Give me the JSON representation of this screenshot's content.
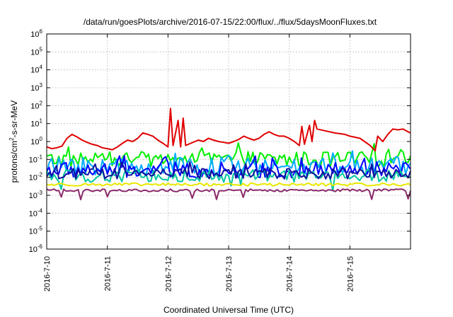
{
  "chart_data": {
    "type": "line",
    "title": "/data/run/goesPlots/archive/2016-07-15/22:00/flux/../flux/5daysMoonFluxes.txt",
    "xlabel": "Coordinated Universal Time (UTC)",
    "ylabel": {
      "prefix": "protons/cm",
      "sup": "2",
      "suffix": "-s-sr-MeV"
    },
    "yscale": "log",
    "ylim": [
      1e-06,
      1000000.0
    ],
    "yticks": [
      {
        "value": 1e-06,
        "base": "10",
        "exp": "-6"
      },
      {
        "value": 1e-05,
        "base": "10",
        "exp": "-5"
      },
      {
        "value": 0.0001,
        "base": "10",
        "exp": "-4"
      },
      {
        "value": 0.001,
        "base": "10",
        "exp": "-3"
      },
      {
        "value": 0.01,
        "base": "10",
        "exp": "-2"
      },
      {
        "value": 0.1,
        "base": "10",
        "exp": "-1"
      },
      {
        "value": 1,
        "base": "10",
        "exp": "0"
      },
      {
        "value": 10,
        "base": "10",
        "exp": "1"
      },
      {
        "value": 100,
        "base": "10",
        "exp": "2"
      },
      {
        "value": 1000,
        "base": "10",
        "exp": "3"
      },
      {
        "value": 10000,
        "base": "10",
        "exp": "4"
      },
      {
        "value": 100000,
        "base": "10",
        "exp": "5"
      },
      {
        "value": 1000000,
        "base": "10",
        "exp": "6"
      }
    ],
    "xlim": [
      "2016-07-10 00:00",
      "2016-07-16 00:00"
    ],
    "xticks": [
      {
        "value": "2016-07-10 00:00",
        "label": "2016-7-10"
      },
      {
        "value": "2016-07-11 00:00",
        "label": "2016-7-11"
      },
      {
        "value": "2016-07-12 00:00",
        "label": "2016-7-12"
      },
      {
        "value": "2016-07-13 00:00",
        "label": "2016-7-13"
      },
      {
        "value": "2016-07-14 00:00",
        "label": "2016-7-14"
      },
      {
        "value": "2016-07-15 00:00",
        "label": "2016-7-15"
      }
    ],
    "grid": true,
    "legend": "none",
    "series": [
      {
        "color": "#e00000",
        "points": [
          [
            "2016-07-10 00:00",
            0.5
          ],
          [
            "2016-07-10 02:00",
            0.4
          ],
          [
            "2016-07-10 04:00",
            0.45
          ],
          [
            "2016-07-10 06:00",
            0.55
          ],
          [
            "2016-07-10 08:00",
            1.5
          ],
          [
            "2016-07-10 10:00",
            2.5
          ],
          [
            "2016-07-10 12:00",
            1.8
          ],
          [
            "2016-07-10 14:00",
            1.2
          ],
          [
            "2016-07-10 16:00",
            0.9
          ],
          [
            "2016-07-10 18:00",
            0.7
          ],
          [
            "2016-07-10 20:00",
            0.6
          ],
          [
            "2016-07-10 22:00",
            0.45
          ],
          [
            "2016-07-11 00:00",
            0.4
          ],
          [
            "2016-07-11 02:00",
            0.35
          ],
          [
            "2016-07-11 04:00",
            0.5
          ],
          [
            "2016-07-11 06:00",
            0.8
          ],
          [
            "2016-07-11 08:00",
            1.2
          ],
          [
            "2016-07-11 10:00",
            1.0
          ],
          [
            "2016-07-11 12:00",
            1.5
          ],
          [
            "2016-07-11 14:00",
            3.0
          ],
          [
            "2016-07-11 16:00",
            2.5
          ],
          [
            "2016-07-11 18:00",
            2.0
          ],
          [
            "2016-07-11 20:00",
            1.2
          ],
          [
            "2016-07-11 22:00",
            0.8
          ],
          [
            "2016-07-12 00:00",
            0.5
          ],
          [
            "2016-07-12 01:00",
            70
          ],
          [
            "2016-07-12 02:00",
            0.6
          ],
          [
            "2016-07-12 04:00",
            15
          ],
          [
            "2016-07-12 05:00",
            0.5
          ],
          [
            "2016-07-12 06:00",
            20
          ],
          [
            "2016-07-12 07:00",
            0.6
          ],
          [
            "2016-07-12 09:00",
            0.8
          ],
          [
            "2016-07-12 12:00",
            1.2
          ],
          [
            "2016-07-12 14:00",
            1.0
          ],
          [
            "2016-07-12 16:00",
            1.5
          ],
          [
            "2016-07-12 18:00",
            1.2
          ],
          [
            "2016-07-12 20:00",
            1.0
          ],
          [
            "2016-07-12 22:00",
            0.9
          ],
          [
            "2016-07-13 00:00",
            0.8
          ],
          [
            "2016-07-13 02:00",
            1.0
          ],
          [
            "2016-07-13 04:00",
            1.3
          ],
          [
            "2016-07-13 06:00",
            2.0
          ],
          [
            "2016-07-13 08:00",
            1.5
          ],
          [
            "2016-07-13 10:00",
            1.2
          ],
          [
            "2016-07-13 12:00",
            1.5
          ],
          [
            "2016-07-13 14:00",
            2.5
          ],
          [
            "2016-07-13 16:00",
            3.5
          ],
          [
            "2016-07-13 18:00",
            2.5
          ],
          [
            "2016-07-13 20:00",
            2.0
          ],
          [
            "2016-07-13 22:00",
            2.0
          ],
          [
            "2016-07-14 00:00",
            1.5
          ],
          [
            "2016-07-14 02:00",
            1.0
          ],
          [
            "2016-07-14 04:00",
            0.6
          ],
          [
            "2016-07-14 05:00",
            7
          ],
          [
            "2016-07-14 06:00",
            0.7
          ],
          [
            "2016-07-14 08:00",
            8
          ],
          [
            "2016-07-14 09:00",
            1.0
          ],
          [
            "2016-07-14 10:00",
            15
          ],
          [
            "2016-07-14 11:00",
            5
          ],
          [
            "2016-07-14 14:00",
            4
          ],
          [
            "2016-07-14 18:00",
            3
          ],
          [
            "2016-07-14 22:00",
            2.5
          ],
          [
            "2016-07-15 00:00",
            2.0
          ],
          [
            "2016-07-15 04:00",
            1.5
          ],
          [
            "2016-07-15 08:00",
            0.6
          ],
          [
            "2016-07-15 10:00",
            0.3
          ],
          [
            "2016-07-15 11:00",
            2.0
          ],
          [
            "2016-07-15 13:00",
            1.0
          ],
          [
            "2016-07-15 15:00",
            2.5
          ],
          [
            "2016-07-15 17:00",
            5.0
          ],
          [
            "2016-07-15 19:00",
            4.5
          ],
          [
            "2016-07-15 21:00",
            5.0
          ],
          [
            "2016-07-15 23:00",
            3.5
          ],
          [
            "2016-07-16 00:00",
            3.0
          ]
        ]
      },
      {
        "color": "#00ee00",
        "level": 0.1,
        "variation": 0.45,
        "spike_dir": 1
      },
      {
        "color": "#00aaff",
        "level": 0.04,
        "variation": 0.5,
        "spike_dir": 1
      },
      {
        "color": "#0000ff",
        "level": 0.025,
        "variation": 0.45,
        "spike_dir": 1
      },
      {
        "color": "#00c8a0",
        "level": 0.012,
        "variation": 0.35,
        "spike_dir": -1
      },
      {
        "color": "#1010a0",
        "level": 0.016,
        "variation": 0.3,
        "spike_dir": 1
      },
      {
        "color": "#e8e800",
        "level": 0.004,
        "variation": 0.08,
        "spike_dir": 0
      },
      {
        "color": "#8a2a6a",
        "level": 0.0019,
        "variation": 0.07,
        "spike_dir": -1
      }
    ]
  }
}
